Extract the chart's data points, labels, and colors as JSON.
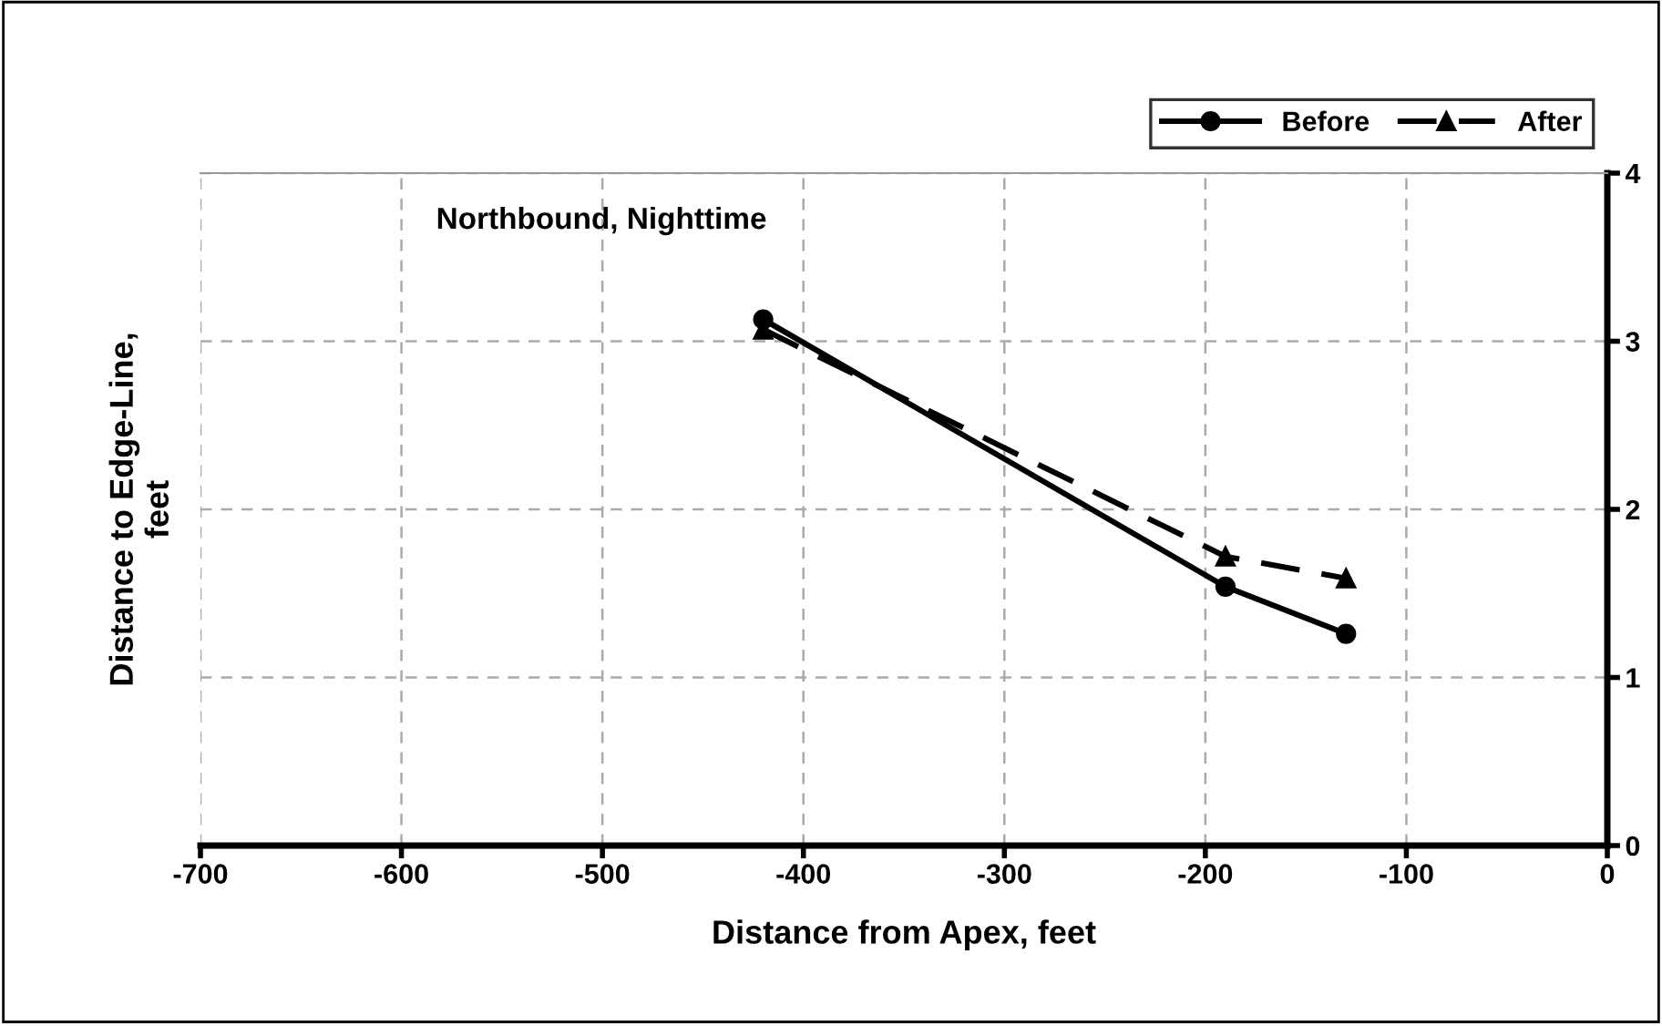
{
  "chart_data": {
    "type": "line",
    "title": "Northbound, Nighttime",
    "xlabel": "Distance from Apex, feet",
    "ylabel": "Distance to Edge-Line,\nfeet",
    "series": [
      {
        "name": "Before",
        "color": "#000000",
        "marker": "circle",
        "line_style": "solid",
        "x": [
          -420,
          -190,
          -130
        ],
        "values": [
          3.13,
          1.54,
          1.26
        ]
      },
      {
        "name": "After",
        "color": "#000000",
        "marker": "triangle",
        "line_style": "dashed",
        "x": [
          -420,
          -190,
          -130
        ],
        "values": [
          3.07,
          1.72,
          1.59
        ]
      }
    ],
    "xlim": [
      -700,
      0
    ],
    "xticks": [
      -700,
      -600,
      -500,
      -400,
      -300,
      -200,
      -100,
      0
    ],
    "ylim": [
      0,
      4
    ],
    "yticks": [
      0,
      1,
      2,
      3,
      4
    ],
    "grid": true,
    "legend": "top right"
  }
}
